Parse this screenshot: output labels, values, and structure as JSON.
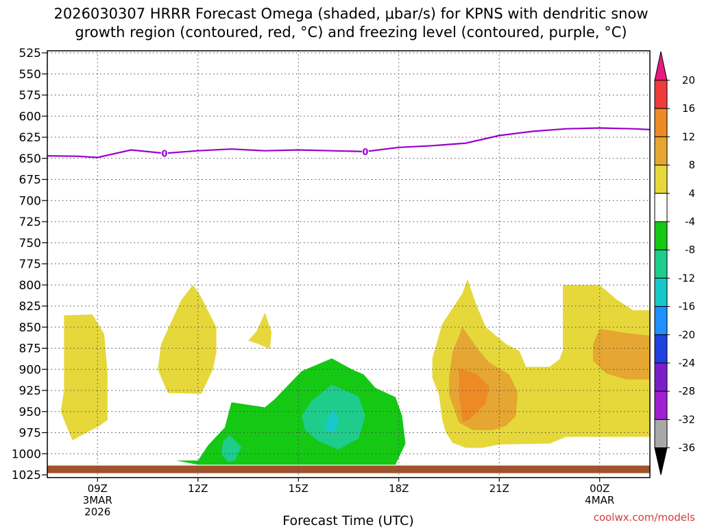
{
  "chart_data": {
    "type": "heatmap",
    "title": "2026030307 HRRR Forecast Omega (shaded, μbar/s) for KPNS with dendritic snow",
    "title_line2": "growth region (contoured, red, °C) and freezing level (contoured, purple, °C)",
    "xlabel": "Forecast Time (UTC)",
    "ylabel": "",
    "credit": "coolwx.com/models",
    "x_range_hours": [
      7.5,
      25.5
    ],
    "x_ticks": [
      {
        "hour": 9,
        "lines": [
          "09Z",
          "3MAR",
          "2026"
        ]
      },
      {
        "hour": 12,
        "lines": [
          "12Z"
        ]
      },
      {
        "hour": 15,
        "lines": [
          "15Z"
        ]
      },
      {
        "hour": 18,
        "lines": [
          "18Z"
        ]
      },
      {
        "hour": 21,
        "lines": [
          "21Z"
        ]
      },
      {
        "hour": 24,
        "lines": [
          "00Z",
          "4MAR"
        ]
      }
    ],
    "y_axis": {
      "unit": "hPa",
      "range": [
        525,
        1025
      ],
      "inverted": true,
      "ticks": [
        525,
        550,
        575,
        600,
        625,
        650,
        675,
        700,
        725,
        750,
        775,
        800,
        825,
        850,
        875,
        900,
        925,
        950,
        975,
        1000,
        1025
      ]
    },
    "colorbar": {
      "labels": [
        "20",
        "16",
        "12",
        "8",
        "4",
        "-4",
        "-8",
        "-12",
        "-16",
        "-20",
        "-24",
        "-28",
        "-32",
        "-36"
      ],
      "colors": {
        "above_20": "#e8197f",
        "16_20": "#ee3b3b",
        "12_16": "#ee8a26",
        "8_12": "#e5a731",
        "4_8": "#e6d83a",
        "m4_4": "#ffffff",
        "m8_m4": "#14c814",
        "m12_m8": "#1ecc8c",
        "m16_m12": "#18c8c8",
        "m20_m16": "#1e90ff",
        "m24_m20": "#2040e0",
        "m28_m24": "#7a1fc8",
        "m32_m28": "#a020d0",
        "m36_m32": "#a8a8a8",
        "below_m36": "#000000"
      }
    },
    "freezing_level": {
      "label": "0",
      "color": "#9900cc",
      "points": [
        [
          7.5,
          647
        ],
        [
          8.4,
          647.5
        ],
        [
          9.0,
          649
        ],
        [
          10.0,
          640
        ],
        [
          11.0,
          644
        ],
        [
          12.0,
          641
        ],
        [
          13.0,
          639
        ],
        [
          14.0,
          641
        ],
        [
          15.0,
          640
        ],
        [
          16.0,
          641
        ],
        [
          17.0,
          642
        ],
        [
          18.0,
          637
        ],
        [
          19.0,
          635
        ],
        [
          20.0,
          632
        ],
        [
          21.0,
          623
        ],
        [
          22.0,
          618
        ],
        [
          23.0,
          615
        ],
        [
          24.0,
          614
        ],
        [
          25.0,
          615
        ],
        [
          25.5,
          616
        ]
      ],
      "label_positions": [
        [
          11.0,
          644
        ],
        [
          17.0,
          642
        ]
      ]
    },
    "omega_regions": [
      {
        "name": "yellow-09z",
        "level": "4_8",
        "points": [
          [
            8.0,
            836
          ],
          [
            8.85,
            835
          ],
          [
            9.2,
            858
          ],
          [
            9.3,
            905
          ],
          [
            9.3,
            960
          ],
          [
            9.05,
            967
          ],
          [
            8.25,
            984
          ],
          [
            8.05,
            965
          ],
          [
            7.9,
            950
          ],
          [
            8.0,
            925
          ]
        ]
      },
      {
        "name": "yellow-11z",
        "level": "4_8",
        "points": [
          [
            11.85,
            800
          ],
          [
            12.05,
            811
          ],
          [
            12.55,
            850
          ],
          [
            12.55,
            880
          ],
          [
            12.45,
            900
          ],
          [
            12.1,
            929
          ],
          [
            11.1,
            928
          ],
          [
            10.8,
            900
          ],
          [
            10.9,
            870
          ],
          [
            11.5,
            818
          ]
        ]
      },
      {
        "name": "yellow-14z",
        "level": "4_8",
        "points": [
          [
            14.0,
            833
          ],
          [
            14.2,
            856
          ],
          [
            14.15,
            876
          ],
          [
            13.8,
            870
          ],
          [
            13.5,
            866
          ],
          [
            13.75,
            855
          ]
        ]
      },
      {
        "name": "green-15z",
        "level": "m8_m4",
        "points": [
          [
            12.0,
            1008
          ],
          [
            12.3,
            990
          ],
          [
            12.8,
            969
          ],
          [
            13.0,
            939
          ],
          [
            14.0,
            945
          ],
          [
            14.3,
            935
          ],
          [
            15.1,
            902
          ],
          [
            16.0,
            887
          ],
          [
            16.6,
            900
          ],
          [
            16.95,
            906
          ],
          [
            17.3,
            922
          ],
          [
            17.9,
            933
          ],
          [
            18.1,
            955
          ],
          [
            18.2,
            988
          ],
          [
            17.9,
            1013
          ],
          [
            17.0,
            1013
          ],
          [
            15.0,
            1013
          ],
          [
            13.0,
            1013
          ],
          [
            12.0,
            1013
          ],
          [
            11.35,
            1008
          ]
        ]
      },
      {
        "name": "teal-13z",
        "level": "m12_m8",
        "points": [
          [
            12.95,
            978
          ],
          [
            13.3,
            992
          ],
          [
            13.1,
            1008
          ],
          [
            12.9,
            1010
          ],
          [
            12.7,
            1000
          ],
          [
            12.75,
            985
          ]
        ]
      },
      {
        "name": "teal-16z",
        "level": "m12_m8",
        "points": [
          [
            15.4,
            937
          ],
          [
            16.0,
            918
          ],
          [
            16.8,
            932
          ],
          [
            17.0,
            955
          ],
          [
            16.8,
            982
          ],
          [
            16.2,
            995
          ],
          [
            15.6,
            985
          ],
          [
            15.2,
            972
          ],
          [
            15.1,
            955
          ]
        ]
      },
      {
        "name": "cyan-16z",
        "level": "m16_m12",
        "points": [
          [
            16.1,
            948
          ],
          [
            16.2,
            962
          ],
          [
            16.1,
            975
          ],
          [
            15.8,
            972
          ],
          [
            15.8,
            960
          ]
        ]
      },
      {
        "name": "yellow-20z",
        "level": "4_8",
        "points": [
          [
            19.3,
            846
          ],
          [
            19.9,
            810
          ],
          [
            20.05,
            793
          ],
          [
            20.3,
            822
          ],
          [
            20.6,
            850
          ],
          [
            20.9,
            860
          ],
          [
            21.2,
            870
          ],
          [
            21.6,
            878
          ],
          [
            21.8,
            897
          ],
          [
            22.5,
            897
          ],
          [
            22.8,
            888
          ],
          [
            22.9,
            877
          ],
          [
            22.9,
            847
          ],
          [
            22.9,
            800
          ],
          [
            23.5,
            800
          ],
          [
            24.0,
            800
          ],
          [
            24.5,
            817
          ],
          [
            25.0,
            830
          ],
          [
            25.5,
            830
          ],
          [
            25.5,
            980
          ],
          [
            25.0,
            980
          ],
          [
            24.0,
            980
          ],
          [
            23.0,
            980
          ],
          [
            22.5,
            988
          ],
          [
            21.0,
            989
          ],
          [
            20.5,
            993
          ],
          [
            20.0,
            993
          ],
          [
            19.6,
            987
          ],
          [
            19.4,
            974
          ],
          [
            19.3,
            960
          ],
          [
            19.2,
            930
          ],
          [
            19.0,
            910
          ],
          [
            19.0,
            887
          ]
        ]
      },
      {
        "name": "orange-21z",
        "level": "8_12",
        "points": [
          [
            19.9,
            850
          ],
          [
            20.4,
            878
          ],
          [
            20.7,
            892
          ],
          [
            21.3,
            906
          ],
          [
            21.55,
            927
          ],
          [
            21.5,
            955
          ],
          [
            21.2,
            967
          ],
          [
            20.8,
            972
          ],
          [
            20.2,
            972
          ],
          [
            19.8,
            963
          ],
          [
            19.5,
            930
          ],
          [
            19.5,
            910
          ],
          [
            19.6,
            880
          ]
        ]
      },
      {
        "name": "orange-00z",
        "level": "8_12",
        "points": [
          [
            24.0,
            852
          ],
          [
            24.8,
            857
          ],
          [
            25.5,
            860
          ],
          [
            25.5,
            912
          ],
          [
            24.8,
            912
          ],
          [
            24.2,
            905
          ],
          [
            23.8,
            890
          ],
          [
            23.8,
            870
          ]
        ]
      },
      {
        "name": "darkorange-21z",
        "level": "12_16",
        "points": [
          [
            19.8,
            899
          ],
          [
            20.3,
            905
          ],
          [
            20.7,
            920
          ],
          [
            20.6,
            940
          ],
          [
            20.1,
            960
          ],
          [
            19.9,
            962
          ],
          [
            19.8,
            930
          ]
        ]
      }
    ],
    "ground": {
      "color": "#a0522d",
      "pressure_range": [
        1014,
        1023
      ]
    }
  }
}
